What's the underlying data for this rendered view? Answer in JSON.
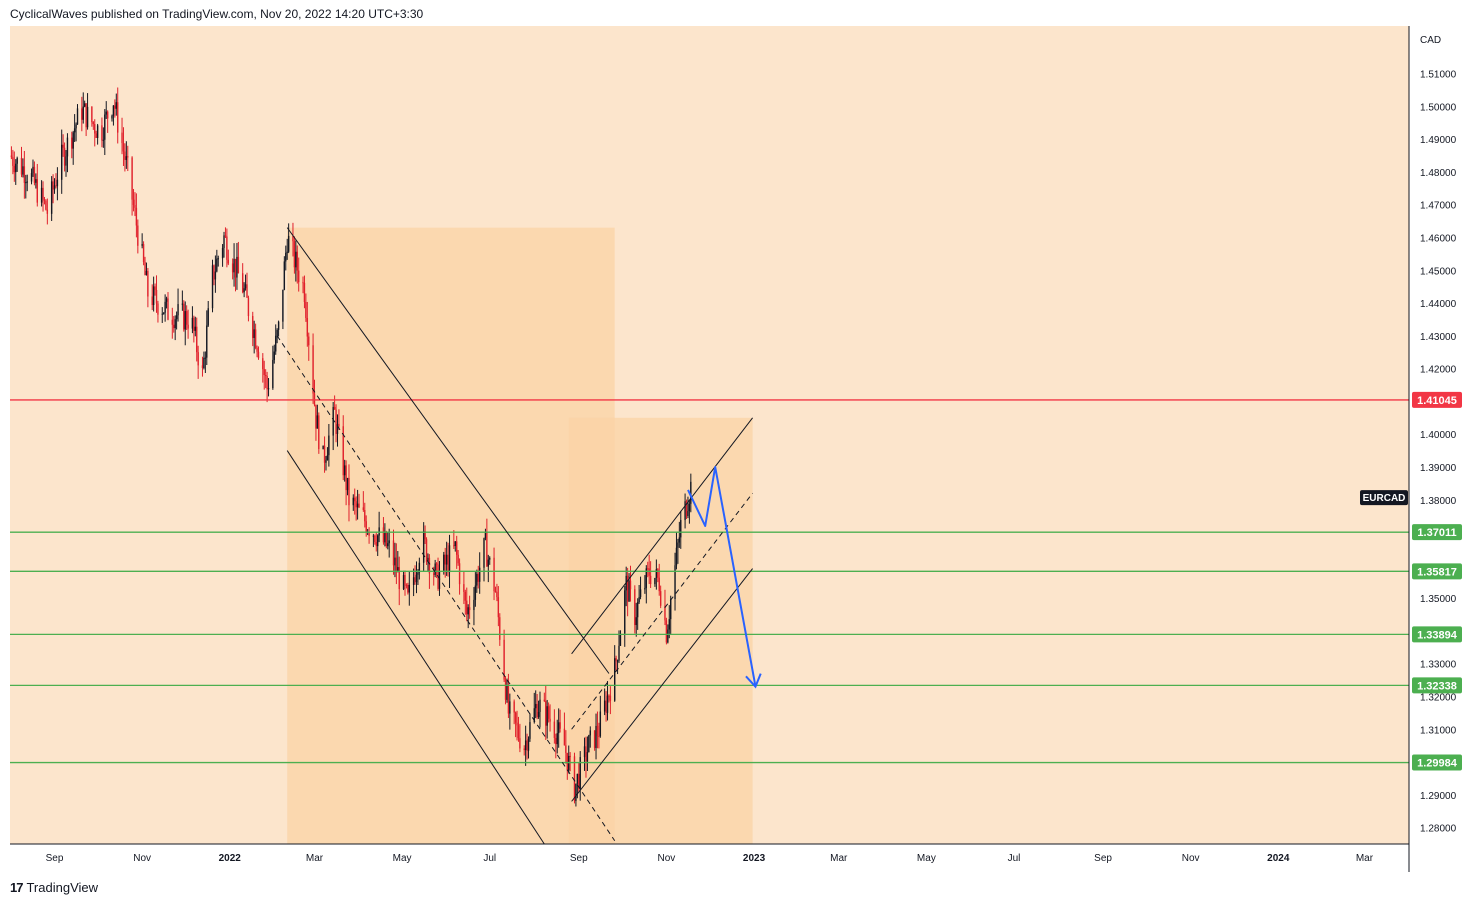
{
  "header": {
    "publish_line": "CyclicalWaves published on TradingView.com, Nov 20, 2022 14:20 UTC+3:30"
  },
  "footer": {
    "brand": "TradingView",
    "logo_glyph": "17"
  },
  "colors": {
    "background": "#fce5cc",
    "channel_fill": "#fbd3a6",
    "up_candle": "#131722",
    "down_candle": "#e0202b",
    "resistance": "#f23645",
    "support": "#4caf50",
    "projection": "#2962ff",
    "channel_line": "#131722"
  },
  "chart_data": {
    "type": "candlestick",
    "symbol": "EURCAD",
    "currency": "CAD",
    "x_axis_labels": [
      "Sep",
      "Nov",
      "2022",
      "Mar",
      "May",
      "Jul",
      "Sep",
      "Nov",
      "2023",
      "Mar",
      "May",
      "Jul",
      "Sep",
      "Nov",
      "2024",
      "Mar"
    ],
    "x_range": [
      "2021-08-01",
      "2024-04-01"
    ],
    "ylim": [
      1.275,
      1.5245
    ],
    "y_ticks": [
      1.51,
      1.5,
      1.49,
      1.48,
      1.47,
      1.46,
      1.45,
      1.44,
      1.43,
      1.42,
      1.4,
      1.39,
      1.38,
      1.35,
      1.33,
      1.32,
      1.31,
      1.29,
      1.28
    ],
    "horizontal_levels": [
      {
        "value": 1.41045,
        "label": "1.41045",
        "kind": "resistance"
      },
      {
        "value": 1.37011,
        "label": "1.37011",
        "kind": "support"
      },
      {
        "value": 1.35817,
        "label": "1.35817",
        "kind": "support"
      },
      {
        "value": 1.33894,
        "label": "1.33894",
        "kind": "support"
      },
      {
        "value": 1.32338,
        "label": "1.32338",
        "kind": "support"
      },
      {
        "value": 1.29984,
        "label": "1.29984",
        "kind": "support"
      }
    ],
    "ohlc_path": [
      [
        "2021-08-01",
        1.485
      ],
      [
        "2021-08-15",
        1.479
      ],
      [
        "2021-08-27",
        1.468
      ],
      [
        "2021-09-05",
        1.483
      ],
      [
        "2021-09-20",
        1.499
      ],
      [
        "2021-10-03",
        1.492
      ],
      [
        "2021-10-12",
        1.502
      ],
      [
        "2021-10-22",
        1.48
      ],
      [
        "2021-11-05",
        1.443
      ],
      [
        "2021-11-20",
        1.437
      ],
      [
        "2021-12-05",
        1.435
      ],
      [
        "2021-12-13",
        1.418
      ],
      [
        "2021-12-20",
        1.448
      ],
      [
        "2021-12-28",
        1.46
      ],
      [
        "2022-01-10",
        1.445
      ],
      [
        "2022-01-22",
        1.425
      ],
      [
        "2022-01-27",
        1.414
      ],
      [
        "2022-02-04",
        1.432
      ],
      [
        "2022-02-10",
        1.46
      ],
      [
        "2022-02-22",
        1.444
      ],
      [
        "2022-03-02",
        1.405
      ],
      [
        "2022-03-07",
        1.392
      ],
      [
        "2022-03-15",
        1.406
      ],
      [
        "2022-03-25",
        1.38
      ],
      [
        "2022-04-08",
        1.372
      ],
      [
        "2022-04-22",
        1.365
      ],
      [
        "2022-05-05",
        1.349
      ],
      [
        "2022-05-15",
        1.368
      ],
      [
        "2022-05-25",
        1.356
      ],
      [
        "2022-06-07",
        1.365
      ],
      [
        "2022-06-15",
        1.345
      ],
      [
        "2022-06-28",
        1.366
      ],
      [
        "2022-07-05",
        1.352
      ],
      [
        "2022-07-14",
        1.315
      ],
      [
        "2022-07-25",
        1.305
      ],
      [
        "2022-08-03",
        1.318
      ],
      [
        "2022-08-12",
        1.313
      ],
      [
        "2022-08-22",
        1.305
      ],
      [
        "2022-08-29",
        1.292
      ],
      [
        "2022-09-08",
        1.305
      ],
      [
        "2022-09-15",
        1.31
      ],
      [
        "2022-09-26",
        1.328
      ],
      [
        "2022-10-04",
        1.354
      ],
      [
        "2022-10-10",
        1.345
      ],
      [
        "2022-10-20",
        1.358
      ],
      [
        "2022-10-27",
        1.355
      ],
      [
        "2022-11-01",
        1.34
      ],
      [
        "2022-11-06",
        1.356
      ],
      [
        "2022-11-11",
        1.372
      ],
      [
        "2022-11-18",
        1.384
      ]
    ],
    "channels": [
      {
        "name": "falling",
        "upper": [
          [
            "2022-02-10",
            1.463
          ],
          [
            "2022-09-22",
            1.327
          ]
        ],
        "lower": [
          [
            "2022-02-10",
            1.395
          ],
          [
            "2022-08-08",
            1.275
          ]
        ],
        "mid": [
          [
            "2022-02-03",
            1.43
          ],
          [
            "2022-09-26",
            1.276
          ]
        ]
      },
      {
        "name": "rising",
        "upper": [
          [
            "2022-08-27",
            1.333
          ],
          [
            "2022-12-31",
            1.405
          ]
        ],
        "lower": [
          [
            "2022-08-27",
            1.288
          ],
          [
            "2022-12-31",
            1.359
          ]
        ],
        "mid": [
          [
            "2022-08-27",
            1.31
          ],
          [
            "2022-12-31",
            1.382
          ]
        ]
      }
    ],
    "channel_boxes": [
      {
        "from": "2022-02-10",
        "to": "2022-09-26",
        "low": 1.275,
        "high": 1.463
      },
      {
        "from": "2022-08-25",
        "to": "2022-12-31",
        "low": 1.275,
        "high": 1.405
      }
    ],
    "projection": [
      [
        "2022-11-16",
        1.383
      ],
      [
        "2022-11-28",
        1.372
      ],
      [
        "2022-12-05",
        1.39
      ],
      [
        "2022-12-13",
        1.371
      ],
      [
        "2023-01-02",
        1.323
      ]
    ]
  }
}
